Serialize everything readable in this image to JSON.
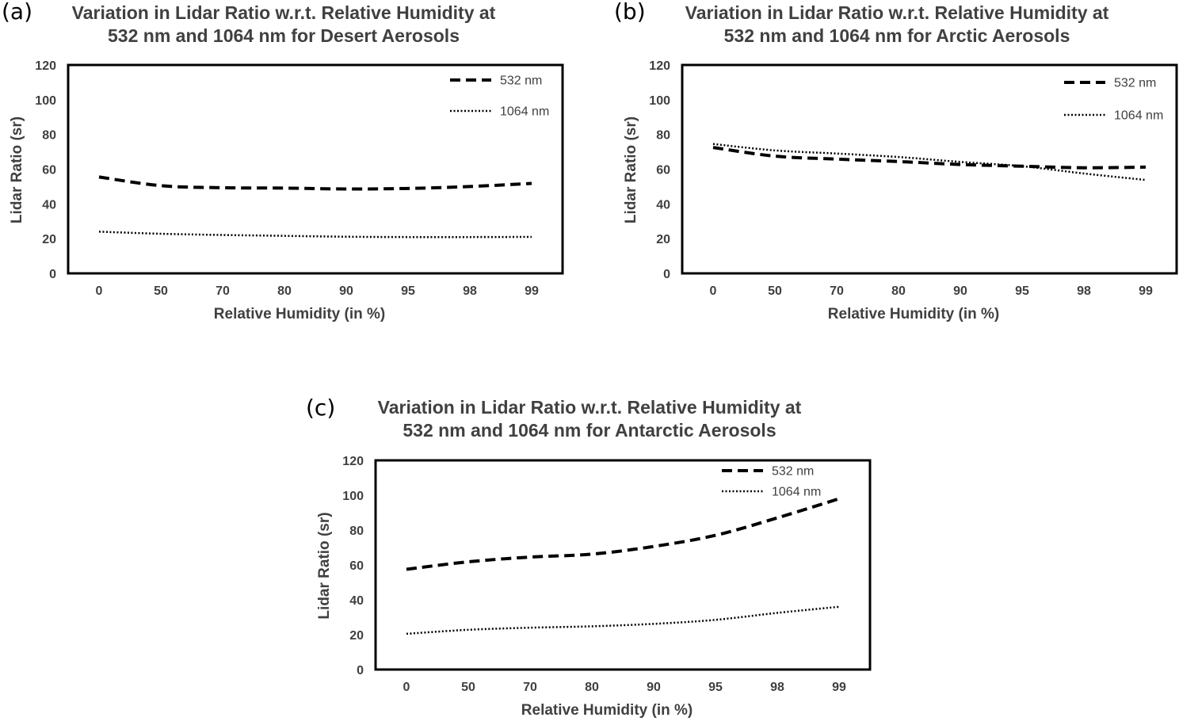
{
  "panels": [
    {
      "letter": "(a)",
      "title_line1": "Variation in Lidar Ratio w.r.t. Relative Humidity at",
      "title_line2": "532 nm and 1064 nm for Desert Aerosols"
    },
    {
      "letter": "(b)",
      "title_line1": "Variation in Lidar Ratio w.r.t. Relative Humidity at",
      "title_line2": "532 nm and 1064 nm for Arctic Aerosols"
    },
    {
      "letter": "(c)",
      "title_line1": "Variation in Lidar Ratio w.r.t. Relative Humidity at",
      "title_line2": "532 nm and 1064 nm for Antarctic Aerosols"
    }
  ],
  "chart_data": [
    {
      "type": "line",
      "title": "Variation in Lidar Ratio w.r.t. Relative Humidity at 532 nm and 1064 nm for Desert Aerosols",
      "xlabel": "Relative Humidity (in %)",
      "ylabel": "Lidar Ratio (sr)",
      "categories": [
        "0",
        "50",
        "70",
        "80",
        "90",
        "95",
        "98",
        "99"
      ],
      "yticks": [
        "0",
        "20",
        "40",
        "60",
        "80",
        "100",
        "120"
      ],
      "ylim": [
        0,
        120
      ],
      "grid": false,
      "legend_position": "top-right",
      "series": [
        {
          "name": "532 nm",
          "style": "dashed",
          "values": [
            55.5,
            50.5,
            49.3,
            49.1,
            48.6,
            48.9,
            50.0,
            51.8
          ]
        },
        {
          "name": "1064 nm",
          "style": "dotted",
          "values": [
            24.0,
            22.8,
            22.1,
            21.6,
            21.1,
            20.9,
            20.9,
            21.0
          ]
        }
      ]
    },
    {
      "type": "line",
      "title": "Variation in Lidar Ratio w.r.t. Relative Humidity at 532 nm and 1064 nm for Arctic Aerosols",
      "xlabel": "Relative Humidity (in %)",
      "ylabel": "Lidar Ratio (sr)",
      "categories": [
        "0",
        "50",
        "70",
        "80",
        "90",
        "95",
        "98",
        "99"
      ],
      "yticks": [
        "0",
        "20",
        "40",
        "60",
        "80",
        "100",
        "120"
      ],
      "ylim": [
        0,
        120
      ],
      "grid": false,
      "legend_position": "top-right",
      "series": [
        {
          "name": "532 nm",
          "style": "dashed",
          "values": [
            72.5,
            67.5,
            65.8,
            64.4,
            62.7,
            61.7,
            60.8,
            61.2
          ]
        },
        {
          "name": "1064 nm",
          "style": "dotted",
          "values": [
            74.5,
            70.8,
            69.0,
            67.0,
            64.2,
            61.7,
            57.5,
            53.8
          ]
        }
      ]
    },
    {
      "type": "line",
      "title": "Variation in Lidar Ratio w.r.t. Relative Humidity at 532 nm and 1064 nm for Antarctic Aerosols",
      "xlabel": "Relative Humidity (in %)",
      "ylabel": "Lidar Ratio (sr)",
      "categories": [
        "0",
        "50",
        "70",
        "80",
        "90",
        "95",
        "98",
        "99"
      ],
      "yticks": [
        "0",
        "20",
        "40",
        "60",
        "80",
        "100",
        "120"
      ],
      "ylim": [
        0,
        120
      ],
      "grid": false,
      "legend_position": "top-right",
      "series": [
        {
          "name": "532 nm",
          "style": "dashed",
          "values": [
            57.5,
            61.8,
            64.5,
            66.2,
            70.6,
            77.0,
            87.0,
            98.0
          ]
        },
        {
          "name": "1064 nm",
          "style": "dotted",
          "values": [
            20.5,
            22.8,
            24.0,
            24.8,
            26.2,
            28.5,
            32.5,
            36.0
          ]
        }
      ]
    }
  ]
}
